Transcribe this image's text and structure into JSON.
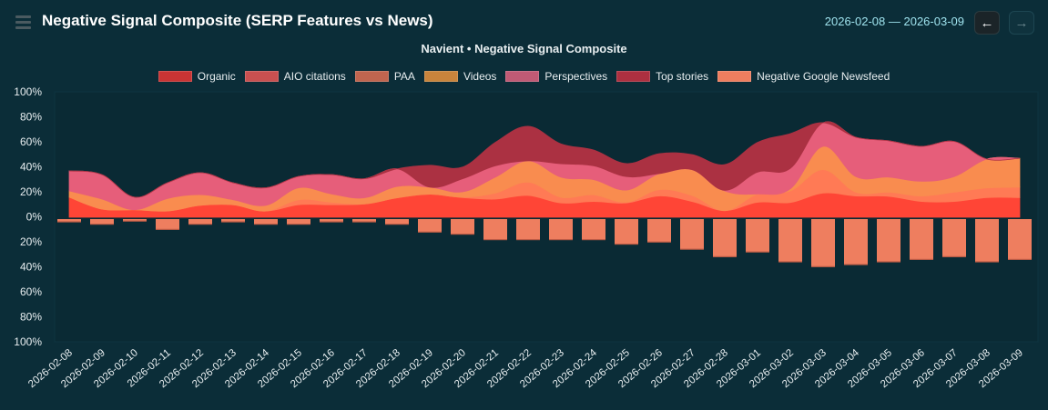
{
  "header": {
    "title": "Negative Signal Composite (SERP Features vs News)",
    "date_range": "2026-02-08 — 2026-03-09",
    "prev_label": "←",
    "next_label": "→",
    "menu_icon": "hamburger-icon"
  },
  "chart_data": {
    "type": "area",
    "title": "Navient • Negative Signal Composite",
    "legend_position": "top",
    "ylim": [
      -100,
      100
    ],
    "yticks": [
      "100%",
      "80%",
      "60%",
      "40%",
      "20%",
      "0%",
      "20%",
      "40%",
      "60%",
      "80%",
      "100%"
    ],
    "categories": [
      "2026-02-08",
      "2026-02-09",
      "2026-02-10",
      "2026-02-11",
      "2026-02-12",
      "2026-02-13",
      "2026-02-14",
      "2026-02-15",
      "2026-02-16",
      "2026-02-17",
      "2026-02-18",
      "2026-02-19",
      "2026-02-20",
      "2026-02-21",
      "2026-02-22",
      "2026-02-23",
      "2026-02-24",
      "2026-02-25",
      "2026-02-26",
      "2026-02-27",
      "2026-02-28",
      "2026-03-01",
      "2026-03-02",
      "2026-03-03",
      "2026-03-04",
      "2026-03-05",
      "2026-03-06",
      "2026-03-07",
      "2026-03-08",
      "2026-03-09"
    ],
    "series": [
      {
        "name": "Organic",
        "kind": "stacked-area",
        "color": "#ff4536",
        "legend_color": "#c93434",
        "values": [
          16,
          6.5,
          6,
          5,
          9.5,
          10,
          5,
          10,
          10,
          10.6,
          15.5,
          18.4,
          15.7,
          14.5,
          17.4,
          11.4,
          12.6,
          11.4,
          17,
          12.6,
          5.3,
          12,
          11.8,
          19.3,
          17,
          16.7,
          12.6,
          12.6,
          15.7,
          15.7
        ]
      },
      {
        "name": "AIO citations",
        "kind": "stacked-area",
        "color": "#e8544c",
        "legend_color": "#c85050",
        "values": [
          0,
          0,
          0,
          0,
          0,
          0,
          0,
          0,
          0,
          0,
          0,
          0,
          0,
          0,
          0,
          0,
          0,
          0,
          0,
          0,
          0,
          0,
          0,
          0,
          0,
          0,
          0,
          0,
          0,
          0
        ]
      },
      {
        "name": "PAA",
        "kind": "stacked-area",
        "color": "#ff7a55",
        "legend_color": "#c0654f",
        "values": [
          0,
          0,
          0,
          0,
          0,
          0,
          0,
          4,
          2,
          0,
          0,
          0,
          0.3,
          4.8,
          10.6,
          4.6,
          5.3,
          0.6,
          5,
          4.8,
          0,
          6.6,
          9.2,
          18.7,
          3,
          3.3,
          4.4,
          7.4,
          7.7,
          8.3
        ]
      },
      {
        "name": "Videos",
        "kind": "stacked-area",
        "color": "#f98c4f",
        "legend_color": "#c8843c",
        "values": [
          5,
          8,
          0,
          10,
          8.5,
          4,
          4.5,
          9.5,
          6.6,
          4.9,
          9.1,
          5.6,
          4.3,
          12.7,
          17,
          16,
          12.1,
          9.7,
          12.8,
          20.6,
          15.7,
          0,
          1.7,
          18.5,
          12.4,
          12,
          11.7,
          12.4,
          23,
          23
        ]
      },
      {
        "name": "Perspectives",
        "kind": "stacked-area",
        "color": "#e65e7a",
        "legend_color": "#c05a75",
        "values": [
          16,
          19.5,
          10,
          12.5,
          17.5,
          13.5,
          14,
          9.1,
          15.4,
          15.2,
          14,
          0,
          10.4,
          9,
          0,
          10.7,
          11,
          10.7,
          0,
          0,
          0.5,
          17.4,
          16.3,
          18.9,
          31.4,
          29,
          27.8,
          28,
          0,
          0
        ]
      },
      {
        "name": "Top stories",
        "kind": "stacked-area",
        "color": "#ab3142",
        "legend_color": "#ad3040",
        "values": [
          0,
          0,
          0,
          0,
          0,
          0,
          0,
          0,
          0,
          0,
          0,
          17.5,
          9.3,
          18.7,
          27.5,
          15.8,
          12.6,
          10.4,
          15.9,
          12,
          20.5,
          23.7,
          27.7,
          0,
          0,
          0,
          0,
          0,
          0,
          0
        ]
      },
      {
        "name": "Negative Google Newsfeed",
        "kind": "negative-bar",
        "color": "#ee7e5f",
        "legend_color": "#ee7e5f",
        "values": [
          3.6,
          5.5,
          3,
          9.7,
          5.5,
          3.6,
          5.5,
          5.5,
          3.6,
          3.6,
          5.5,
          11.8,
          13.5,
          17.9,
          17.9,
          17.9,
          17.9,
          21.5,
          19.8,
          25.6,
          31.6,
          27.8,
          35.7,
          39.6,
          37.9,
          35.7,
          33.8,
          31.6,
          35.7,
          33.8
        ]
      }
    ]
  }
}
